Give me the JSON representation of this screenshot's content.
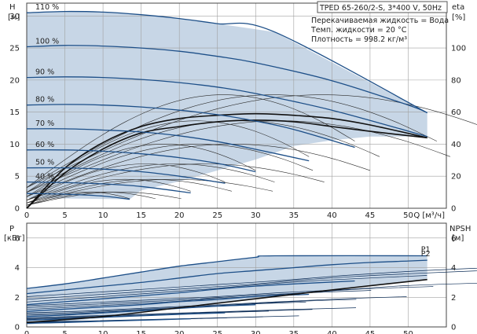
{
  "header": {
    "model": "TPED 65-260/2-S, 3*400 V, 50Hz",
    "liquid": "Перекачиваемая жидкость = Вода",
    "temp": "Темп. жидкости = 20 °C",
    "density": "Плотность = 998.2 кг/м³"
  },
  "colors": {
    "envelope": "#c7d6e6",
    "curve": "#1d4f88",
    "curve_dark": "#0c2d57",
    "grid": "#a0a0a0",
    "eff": "#111111",
    "thin": "#2a2a2a"
  },
  "chart_data": [
    {
      "type": "line",
      "name": "head",
      "xlabel": "Q [м³/ч]",
      "ylabel_left": [
        "H",
        "[м]"
      ],
      "ylabel_right": [
        "eta",
        "[%]"
      ],
      "xlim": [
        0,
        55
      ],
      "ylim": [
        0,
        32
      ],
      "xticks": [
        0,
        5,
        10,
        15,
        20,
        25,
        30,
        35,
        40,
        45,
        50
      ],
      "yticks": [
        0,
        5,
        10,
        15,
        20,
        25,
        30
      ],
      "y2lim": [
        0,
        128
      ],
      "y2ticks": [
        0,
        20,
        40,
        60,
        80,
        100
      ],
      "grid": true,
      "series": [
        {
          "name": "110 %",
          "x": [
            0,
            5,
            10,
            15,
            20,
            25,
            32.5,
            52.5
          ],
          "y": [
            30.5,
            30.7,
            30.6,
            30.2,
            29.6,
            28.8,
            27.5,
            14.9
          ]
        },
        {
          "name": "100 %",
          "x": [
            0,
            5,
            10,
            15,
            20,
            25,
            30,
            40,
            50,
            52.5
          ],
          "y": [
            25.2,
            25.4,
            25.3,
            25,
            24.5,
            23.7,
            22.7,
            19.9,
            16.1,
            14.9
          ]
        },
        {
          "name": "90 %",
          "x": [
            0,
            5,
            10,
            15,
            20,
            25,
            30,
            40,
            52.5
          ],
          "y": [
            20.4,
            20.5,
            20.4,
            20.1,
            19.6,
            18.9,
            17.9,
            15.3,
            11.2
          ]
        },
        {
          "name": "80 %",
          "x": [
            0,
            5,
            10,
            15,
            20,
            25,
            30,
            35,
            43
          ],
          "y": [
            16.1,
            16.2,
            16.1,
            15.8,
            15.3,
            14.6,
            13.6,
            12.3,
            9.5
          ]
        },
        {
          "name": "70 %",
          "x": [
            0,
            5,
            10,
            15,
            20,
            25,
            30,
            37
          ],
          "y": [
            12.4,
            12.4,
            12.2,
            11.9,
            11.3,
            10.4,
            9.2,
            7.4
          ]
        },
        {
          "name": "60 %",
          "x": [
            0,
            5,
            10,
            15,
            20,
            25,
            30
          ],
          "y": [
            9.1,
            9.1,
            8.9,
            8.5,
            7.9,
            7,
            5.7
          ]
        },
        {
          "name": "50 %",
          "x": [
            0,
            5,
            10,
            15,
            20,
            26
          ],
          "y": [
            6.3,
            6.3,
            6.1,
            5.7,
            5,
            3.9
          ]
        },
        {
          "name": "40 %",
          "x": [
            0,
            5,
            10,
            15,
            21.5
          ],
          "y": [
            4.1,
            4,
            3.8,
            3.4,
            2.4
          ]
        },
        {
          "name": "",
          "x": [
            0,
            5,
            10,
            13.5
          ],
          "y": [
            2.3,
            2.2,
            1.9,
            1.4
          ]
        }
      ],
      "efficiency": [
        {
          "x": [
            0,
            5,
            10,
            15,
            20,
            25,
            30,
            35,
            40,
            45,
            52.5
          ],
          "y": [
            0,
            25,
            41,
            51,
            56,
            58,
            59,
            58,
            56,
            52,
            44
          ]
        },
        {
          "x": [
            0,
            5,
            10,
            15,
            20,
            25,
            30,
            35,
            40,
            45,
            52.5
          ],
          "y": [
            0,
            22,
            37,
            47,
            51,
            54,
            55,
            54,
            51,
            48,
            44
          ]
        }
      ],
      "envelope": {
        "x": [
          0,
          5,
          10,
          15,
          20,
          25,
          32.5,
          52.5,
          52.5,
          45,
          40,
          35,
          30,
          25,
          20,
          15,
          13.5,
          0
        ],
        "y": [
          30.5,
          30.7,
          30.6,
          30.2,
          29.6,
          28.8,
          27.5,
          14.9,
          11.2,
          11.2,
          10.6,
          9.7,
          7.6,
          5.9,
          4.2,
          2.8,
          1.4,
          1.6
        ]
      },
      "annotations": [
        "110 %",
        "100 %",
        "90 %",
        "80 %",
        "70 %",
        "60 %",
        "50 %",
        "40 %"
      ]
    },
    {
      "type": "line",
      "name": "power",
      "xlim": [
        0,
        55
      ],
      "ylim": [
        0,
        7
      ],
      "yticks": [
        0,
        2,
        4,
        6
      ],
      "y2ticks": [
        0,
        2,
        4,
        6
      ],
      "ylabel_left": [
        "P",
        "[кВт]"
      ],
      "ylabel_right": [
        "NPSH",
        "[м]"
      ],
      "grid": true,
      "series": [
        {
          "name": "P1",
          "x": [
            0,
            5,
            10,
            15,
            20,
            25,
            30,
            32.5,
            52.5
          ],
          "y": [
            2.6,
            2.9,
            3.3,
            3.7,
            4.1,
            4.4,
            4.7,
            4.8,
            4.8
          ]
        },
        {
          "name": "P2",
          "x": [
            0,
            5,
            10,
            15,
            20,
            25,
            30,
            35,
            40,
            45,
            50,
            52.5
          ],
          "y": [
            2.25,
            2.5,
            2.75,
            3.0,
            3.3,
            3.6,
            3.8,
            4.0,
            4.2,
            4.35,
            4.45,
            4.5
          ]
        },
        {
          "name": "",
          "x": [
            0,
            5,
            10,
            15,
            20,
            25,
            30,
            35,
            43
          ],
          "y": [
            1.5,
            1.7,
            1.9,
            2.1,
            2.3,
            2.55,
            2.75,
            2.9,
            3.1
          ]
        },
        {
          "name": "",
          "x": [
            0,
            5,
            10,
            15,
            20,
            25,
            30,
            37
          ],
          "y": [
            1.05,
            1.2,
            1.35,
            1.5,
            1.7,
            1.85,
            2.05,
            2.2
          ]
        },
        {
          "name": "",
          "x": [
            0,
            5,
            10,
            15,
            20,
            25,
            30
          ],
          "y": [
            0.7,
            0.8,
            0.95,
            1.1,
            1.25,
            1.4,
            1.5
          ]
        },
        {
          "name": "",
          "x": [
            0,
            5,
            10,
            15,
            20,
            26
          ],
          "y": [
            0.45,
            0.55,
            0.65,
            0.75,
            0.85,
            0.95
          ]
        },
        {
          "name": "",
          "x": [
            0,
            5,
            10,
            15,
            21.5
          ],
          "y": [
            0.25,
            0.3,
            0.38,
            0.45,
            0.55
          ]
        }
      ],
      "npsh": {
        "x": [
          0,
          10,
          20,
          30,
          40,
          52.5
        ],
        "y": [
          0.3,
          0.7,
          1.3,
          1.9,
          2.5,
          3.2
        ]
      },
      "envelope": {
        "x": [
          0,
          10,
          20,
          30,
          32.5,
          52.5,
          52.5,
          40,
          30,
          20,
          10,
          0
        ],
        "y": [
          2.6,
          3.3,
          4.1,
          4.7,
          4.8,
          4.8,
          3.2,
          2.5,
          1.9,
          1.3,
          0.6,
          0.15
        ]
      }
    }
  ]
}
